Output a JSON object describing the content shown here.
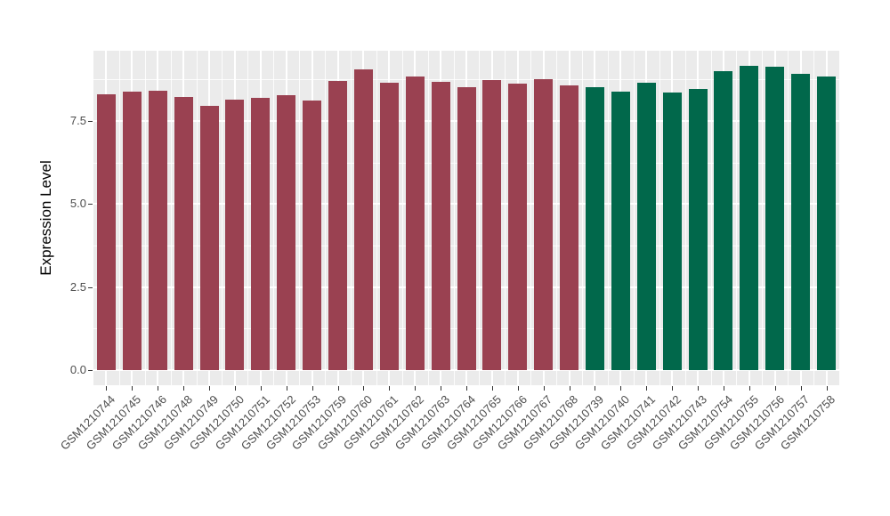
{
  "figure": {
    "background": "#FFFFFF",
    "panel_background": "#EBEBEB",
    "gridline_color": "#FFFFFF",
    "tick_label_color": "#4D4D4D",
    "axis_title_color": "#000000",
    "tick_mark_color": "#333333"
  },
  "chart_data": {
    "type": "bar",
    "title": "",
    "xlabel": "",
    "ylabel": "Expression Level",
    "legend": "none",
    "grid": "major and minor white gridlines on gray panel",
    "categories": [
      "GSM1210744",
      "GSM1210745",
      "GSM1210746",
      "GSM1210748",
      "GSM1210749",
      "GSM1210750",
      "GSM1210751",
      "GSM1210752",
      "GSM1210753",
      "GSM1210759",
      "GSM1210760",
      "GSM1210761",
      "GSM1210762",
      "GSM1210763",
      "GSM1210764",
      "GSM1210765",
      "GSM1210766",
      "GSM1210767",
      "GSM1210768",
      "GSM1210739",
      "GSM1210740",
      "GSM1210741",
      "GSM1210742",
      "GSM1210743",
      "GSM1210754",
      "GSM1210755",
      "GSM1210756",
      "GSM1210757",
      "GSM1210758"
    ],
    "values": [
      8.3,
      8.38,
      8.41,
      8.23,
      7.96,
      8.15,
      8.21,
      8.28,
      8.13,
      8.71,
      9.05,
      8.65,
      8.85,
      8.69,
      8.52,
      8.74,
      8.63,
      8.76,
      8.58,
      8.51,
      8.39,
      8.65,
      8.37,
      8.47,
      9.0,
      9.16,
      9.13,
      8.93,
      8.85
    ],
    "groups": [
      {
        "name": "maroon-group",
        "color": "#9A4151",
        "start": 0,
        "count": 19
      },
      {
        "name": "green-group",
        "color": "#01684B",
        "start": 19,
        "count": 10
      }
    ],
    "yticks": [
      0.0,
      2.5,
      5.0,
      7.5
    ],
    "ytick_labels": [
      "0.0",
      "2.5",
      "5.0",
      "7.5"
    ],
    "yminor": [
      1.25,
      3.75,
      6.25,
      8.75
    ],
    "ylim": [
      -0.46,
      9.62
    ]
  }
}
